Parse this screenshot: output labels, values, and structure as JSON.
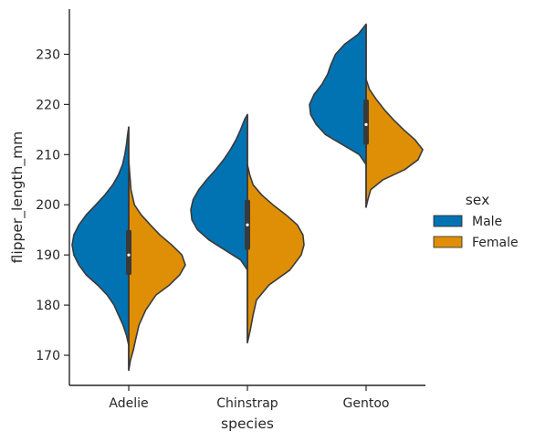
{
  "chart_data": {
    "type": "violin",
    "split": true,
    "xlabel": "species",
    "ylabel": "flipper_length_mm",
    "categories": [
      "Adelie",
      "Chinstrap",
      "Gentoo"
    ],
    "ylim": [
      164,
      239
    ],
    "yticks": [
      170,
      180,
      190,
      200,
      210,
      220,
      230
    ],
    "legend": {
      "title": "sex",
      "placement": "right",
      "entries": [
        {
          "name": "Male",
          "color": "#0173b2"
        },
        {
          "name": "Female",
          "color": "#de8f05"
        }
      ]
    },
    "violins": [
      {
        "category": "Adelie",
        "box": {
          "q1": 186,
          "median": 190,
          "q3": 195
        },
        "male": {
          "min": 172,
          "max": 215.5,
          "profile": [
            [
              172,
              0.0
            ],
            [
              174,
              0.04
            ],
            [
              176,
              0.1
            ],
            [
              178,
              0.18
            ],
            [
              180,
              0.26
            ],
            [
              182,
              0.38
            ],
            [
              184,
              0.55
            ],
            [
              186,
              0.75
            ],
            [
              188,
              0.88
            ],
            [
              190,
              0.97
            ],
            [
              192,
              1.0
            ],
            [
              194,
              0.97
            ],
            [
              196,
              0.88
            ],
            [
              198,
              0.75
            ],
            [
              200,
              0.58
            ],
            [
              202,
              0.42
            ],
            [
              204,
              0.28
            ],
            [
              206,
              0.18
            ],
            [
              208,
              0.11
            ],
            [
              210,
              0.07
            ],
            [
              212,
              0.04
            ],
            [
              214,
              0.02
            ],
            [
              215.5,
              0.0
            ]
          ]
        },
        "female": {
          "min": 167,
          "max": 209,
          "profile": [
            [
              167,
              0.0
            ],
            [
              169,
              0.03
            ],
            [
              171,
              0.08
            ],
            [
              173,
              0.12
            ],
            [
              176,
              0.18
            ],
            [
              179,
              0.3
            ],
            [
              182,
              0.48
            ],
            [
              184,
              0.72
            ],
            [
              186,
              0.9
            ],
            [
              188,
              1.0
            ],
            [
              190,
              0.94
            ],
            [
              192,
              0.76
            ],
            [
              194,
              0.55
            ],
            [
              196,
              0.38
            ],
            [
              198,
              0.22
            ],
            [
              200,
              0.1
            ],
            [
              203,
              0.04
            ],
            [
              206,
              0.02
            ],
            [
              209,
              0.0
            ]
          ]
        }
      },
      {
        "category": "Chinstrap",
        "box": {
          "q1": 191,
          "median": 196,
          "q3": 201
        },
        "male": {
          "min": 187,
          "max": 218,
          "profile": [
            [
              187,
              0.0
            ],
            [
              189,
              0.12
            ],
            [
              191,
              0.4
            ],
            [
              193,
              0.68
            ],
            [
              195,
              0.88
            ],
            [
              197,
              0.98
            ],
            [
              199,
              1.0
            ],
            [
              201,
              0.96
            ],
            [
              203,
              0.86
            ],
            [
              205,
              0.72
            ],
            [
              207,
              0.56
            ],
            [
              209,
              0.42
            ],
            [
              211,
              0.3
            ],
            [
              213,
              0.2
            ],
            [
              215,
              0.12
            ],
            [
              217,
              0.05
            ],
            [
              218,
              0.0
            ]
          ]
        },
        "female": {
          "min": 172.5,
          "max": 208,
          "profile": [
            [
              172.5,
              0.0
            ],
            [
              175,
              0.05
            ],
            [
              178,
              0.1
            ],
            [
              181,
              0.16
            ],
            [
              184,
              0.38
            ],
            [
              187,
              0.75
            ],
            [
              190,
              0.95
            ],
            [
              192,
              1.0
            ],
            [
              194,
              0.98
            ],
            [
              196,
              0.88
            ],
            [
              198,
              0.68
            ],
            [
              200,
              0.45
            ],
            [
              202,
              0.25
            ],
            [
              204,
              0.1
            ],
            [
              206,
              0.04
            ],
            [
              208,
              0.0
            ]
          ]
        }
      },
      {
        "category": "Gentoo",
        "box": {
          "q1": 212,
          "median": 216,
          "q3": 221
        },
        "male": {
          "min": 208,
          "max": 236,
          "profile": [
            [
              208,
              0.0
            ],
            [
              210,
              0.12
            ],
            [
              212,
              0.42
            ],
            [
              214,
              0.72
            ],
            [
              216,
              0.88
            ],
            [
              218,
              0.98
            ],
            [
              220,
              1.0
            ],
            [
              222,
              0.92
            ],
            [
              224,
              0.78
            ],
            [
              226,
              0.68
            ],
            [
              228,
              0.62
            ],
            [
              230,
              0.54
            ],
            [
              232,
              0.38
            ],
            [
              234,
              0.14
            ],
            [
              236,
              0.0
            ]
          ]
        },
        "female": {
          "min": 199.5,
          "max": 225,
          "profile": [
            [
              199.5,
              0.0
            ],
            [
              201,
              0.03
            ],
            [
              203,
              0.08
            ],
            [
              205,
              0.3
            ],
            [
              207,
              0.68
            ],
            [
              209,
              0.92
            ],
            [
              211,
              1.0
            ],
            [
              213,
              0.86
            ],
            [
              215,
              0.66
            ],
            [
              217,
              0.48
            ],
            [
              219,
              0.32
            ],
            [
              221,
              0.18
            ],
            [
              223,
              0.06
            ],
            [
              225,
              0.0
            ]
          ]
        }
      }
    ]
  }
}
